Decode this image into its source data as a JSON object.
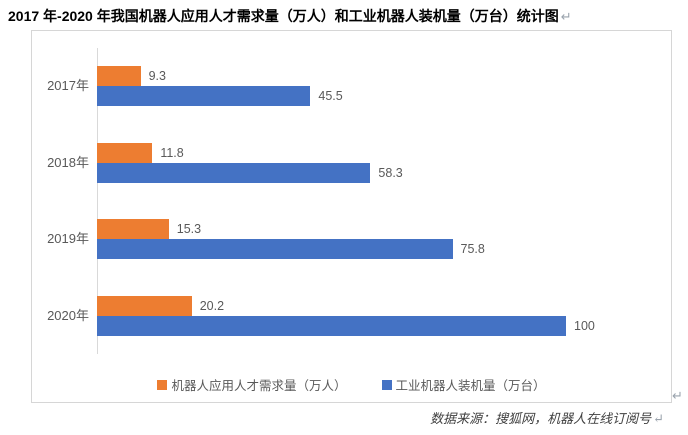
{
  "title": {
    "text": "2017 年-2020 年我国机器人应用人才需求量（万人）和工业机器人装机量（万台）统计图",
    "return_mark": "↵"
  },
  "source_note": {
    "text": "数据来源：搜狐网，机器人在线订阅号",
    "return_mark": "↵"
  },
  "anchor_return_mark": "↵",
  "colors": {
    "talent_demand_orange": "#ED7D31",
    "installed_blue": "#4472C4",
    "label_gray": "#595959",
    "frame_border": "#D6D6D6",
    "axis_line": "#D9D9D9"
  },
  "chart_data": {
    "type": "bar",
    "orientation": "horizontal",
    "title": "2017 年-2020 年我国机器人应用人才需求量（万人）和工业机器人装机量（万台）统计图",
    "categories": [
      "2017年",
      "2018年",
      "2019年",
      "2020年"
    ],
    "series": [
      {
        "name": "机器人应用人才需求量（万人）",
        "color": "#ED7D31",
        "values": [
          9.3,
          11.8,
          15.3,
          20.2
        ],
        "labels": [
          "9.3",
          "11.8",
          "15.3",
          "20.2"
        ]
      },
      {
        "name": "工业机器人装机量（万台）",
        "color": "#4472C4",
        "values": [
          45.5,
          58.3,
          75.8,
          100
        ],
        "labels": [
          "45.5",
          "58.3",
          "75.8",
          "100"
        ]
      }
    ],
    "xlim": [
      0,
      100
    ],
    "value_labels": true,
    "grid": false,
    "legend_position": "bottom"
  }
}
